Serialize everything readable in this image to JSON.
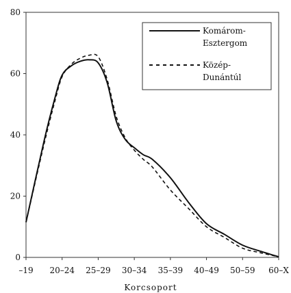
{
  "chart_data": {
    "type": "line",
    "title": "",
    "xlabel": "Korcsoport",
    "ylabel": "",
    "categories": [
      "–19",
      "20–24",
      "25–29",
      "30–34",
      "35–39",
      "40–49",
      "50–59",
      "60–X"
    ],
    "ylim": [
      0,
      80
    ],
    "yticks": [
      0,
      20,
      40,
      60,
      80
    ],
    "grid": false,
    "legend": "top-right",
    "x": [
      0,
      0.5,
      0.8,
      1.0,
      1.25,
      1.5,
      1.75,
      2.0,
      2.25,
      2.5,
      2.75,
      3.0,
      3.25,
      3.5,
      4.0,
      4.5,
      5.0,
      5.5,
      6.0,
      6.5,
      7.0
    ],
    "series": [
      {
        "name": "Komárom-Esztergom",
        "style": "solid",
        "values": [
          11.5,
          38,
          52,
          59.5,
          62.5,
          64,
          64.5,
          63.5,
          57,
          44.5,
          38.5,
          35.8,
          33.5,
          32,
          26,
          18,
          11,
          7.5,
          4,
          2,
          0.2
        ]
      },
      {
        "name": "Közép-Dunántúl",
        "style": "dashed",
        "values": [
          11.5,
          37,
          51,
          59,
          63,
          65,
          66,
          65.5,
          58,
          46,
          39,
          35,
          32,
          29.5,
          22,
          16,
          10,
          6.5,
          3,
          1.5,
          0.2
        ]
      }
    ]
  },
  "legend": {
    "entries": [
      {
        "line1": "Komárom-",
        "line2": "Esztergom"
      },
      {
        "line1": "Közép-",
        "line2": "Dunántúl"
      }
    ]
  }
}
